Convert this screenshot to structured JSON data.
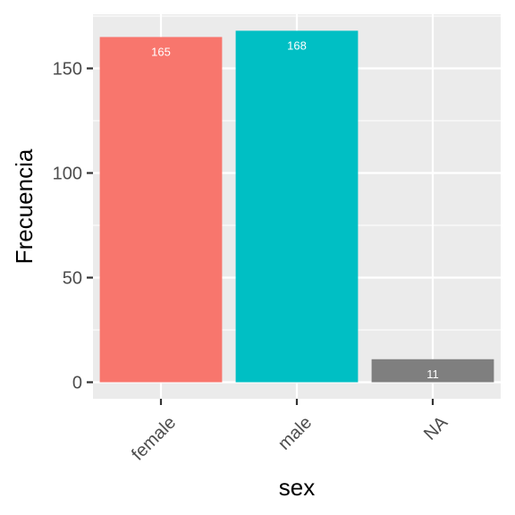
{
  "chart_data": {
    "type": "bar",
    "categories": [
      "female",
      "male",
      "NA"
    ],
    "values": [
      165,
      168,
      11
    ],
    "data_labels": [
      "165",
      "168",
      "11"
    ],
    "colors": [
      "#F8766D",
      "#00BFC4",
      "#7F7F7F"
    ],
    "title": "",
    "xlabel": "sex",
    "ylabel": "Frecuencia",
    "ylim": [
      0,
      176
    ],
    "yticks": [
      0,
      50,
      100,
      150
    ],
    "ytick_labels": [
      "0",
      "50",
      "100",
      "150"
    ],
    "grid": true,
    "panel_background": "#EBEBEB",
    "grid_color": "#FFFFFF",
    "xtick_rotation_deg": 45
  }
}
